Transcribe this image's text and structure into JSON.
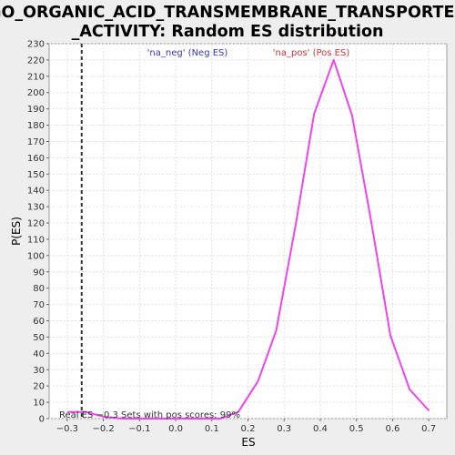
{
  "chart_data": {
    "type": "line",
    "title_lines": [
      "GO_ORGANIC_ACID_TRANSMEMBRANE_TRANSPORTER",
      "_ACTIVITY: Random ES distribution"
    ],
    "xlabel": "ES",
    "ylabel": "P(ES)",
    "xlim": [
      -0.35,
      0.75
    ],
    "ylim": [
      0,
      230
    ],
    "x_ticks": [
      -0.3,
      -0.2,
      -0.1,
      0.0,
      0.1,
      0.2,
      0.3,
      0.4,
      0.5,
      0.6,
      0.7
    ],
    "x_tick_labels": [
      "−0.3",
      "−0.2",
      "−0.1",
      "0.0",
      "0.1",
      "0.2",
      "0.3",
      "0.4",
      "0.5",
      "0.6",
      "0.7"
    ],
    "y_ticks": [
      0,
      10,
      20,
      30,
      40,
      50,
      60,
      70,
      80,
      90,
      100,
      110,
      120,
      130,
      140,
      150,
      160,
      170,
      180,
      190,
      200,
      210,
      220,
      230
    ],
    "grid": true,
    "series": [
      {
        "color": "#ee44ee",
        "x": [
          -0.297,
          -0.247,
          -0.197,
          -0.147,
          -0.097,
          -0.047,
          0.003,
          0.053,
          0.103,
          0.123,
          0.173,
          0.228,
          0.278,
          0.333,
          0.383,
          0.437,
          0.488,
          0.54,
          0.594,
          0.647,
          0.7
        ],
        "y": [
          4,
          4,
          1,
          0,
          0,
          0,
          0,
          0,
          0,
          0,
          4,
          23,
          54,
          120,
          187,
          220,
          186,
          122,
          51,
          18,
          5
        ]
      }
    ],
    "real_es": -0.26,
    "legend": {
      "neg_label": "'na_neg' (Neg ES)",
      "pos_label": "'na_pos' (Pos ES)",
      "neg_color": "#3333cc",
      "pos_color": "#cc3333"
    },
    "annotation": "Real ES −0.3    Sets with pos scores: 99%"
  }
}
